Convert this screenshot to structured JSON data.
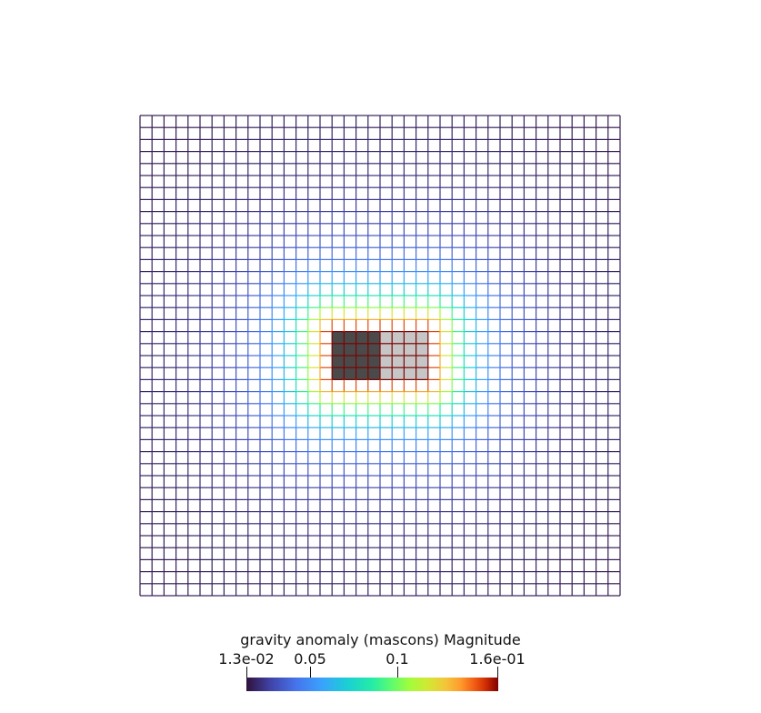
{
  "colorbar": {
    "title": "gravity anomaly (mascons) Magnitude",
    "min_label": "1.3e-02",
    "max_label": "1.6e-01",
    "tick_labels": [
      "0.05",
      "0.1"
    ],
    "range": [
      0.013,
      0.16
    ],
    "ticks": [
      0.05,
      0.1
    ],
    "colormap": "turbo"
  },
  "mesh": {
    "grid_size": 40,
    "shaded_cell_colors": {
      "dark": "#4a4a4a",
      "light": "#c6c6c6"
    }
  }
}
